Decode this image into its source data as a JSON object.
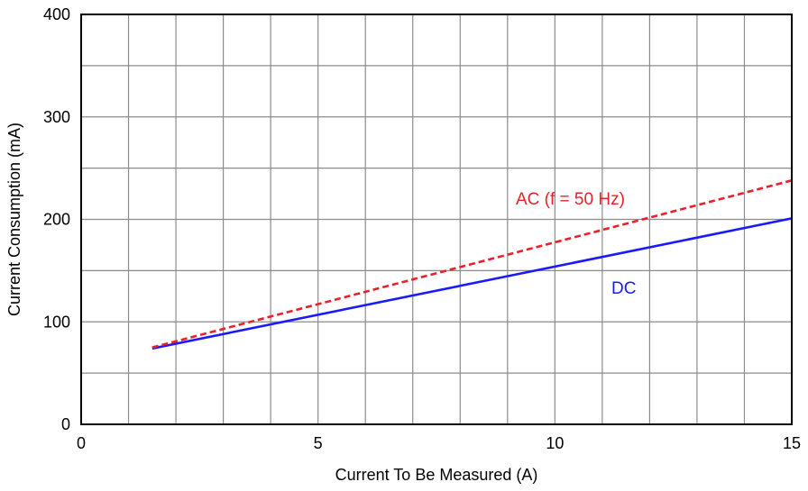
{
  "chart_data": {
    "type": "line",
    "title": "",
    "xlabel": "Current To Be Measured (A)",
    "ylabel": "Current Consumption (mA)",
    "xlim": [
      0,
      15
    ],
    "ylim": [
      0,
      400
    ],
    "x_ticks": [
      0,
      5,
      10,
      15
    ],
    "x_tick_labels": [
      "0",
      "5",
      "10",
      "15"
    ],
    "y_ticks": [
      0,
      100,
      200,
      300,
      400
    ],
    "y_tick_labels": [
      "0",
      "100",
      "200",
      "300",
      "400"
    ],
    "grid": true,
    "grid_x_step": 1,
    "grid_y_step": 50,
    "series": [
      {
        "name": "DC",
        "color": "#1a1aff",
        "style": "solid",
        "x": [
          1.5,
          15
        ],
        "y": [
          74,
          201
        ]
      },
      {
        "name": "AC (f = 50 Hz)",
        "color": "#e8212b",
        "style": "dashed",
        "x": [
          1.5,
          15
        ],
        "y": [
          75,
          238
        ]
      }
    ]
  }
}
